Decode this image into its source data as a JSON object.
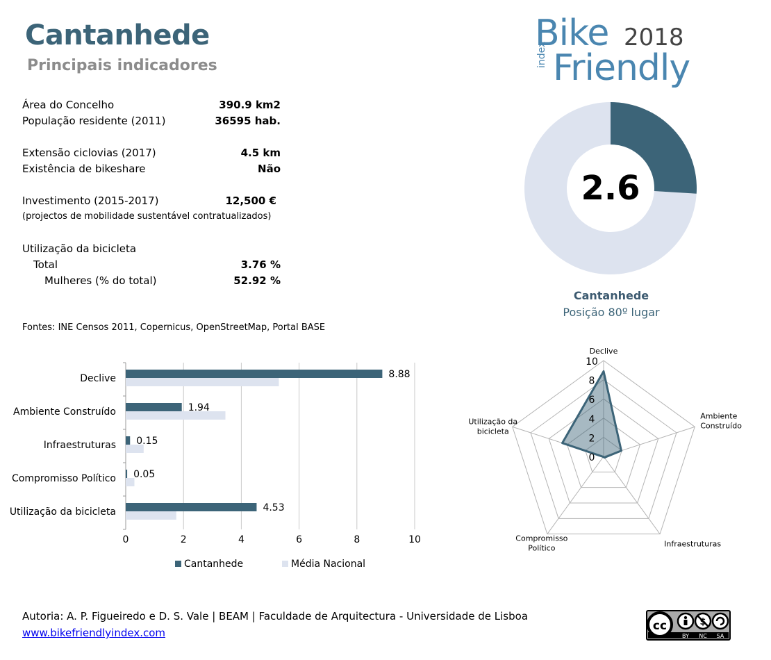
{
  "header": {
    "title": "Cantanhede",
    "subtitle": "Principais indicadores"
  },
  "logo": {
    "word1": "Bike",
    "year": "2018",
    "word2": "Friendly",
    "index": "index"
  },
  "indicators": [
    {
      "label": "Área do Concelho",
      "value": "390.9 km2"
    },
    {
      "label": "População residente (2011)",
      "value": "36595 hab."
    },
    {
      "label": "Extensão ciclovias (2017)",
      "value": "4.5 km"
    },
    {
      "label": "Existência de bikeshare",
      "value": "Não"
    },
    {
      "label": "Investimento (2015-2017)",
      "value": "12,500 €"
    },
    {
      "label": "Utilização da bicicleta",
      "value": ""
    },
    {
      "label": "Total",
      "value": "3.76 %"
    },
    {
      "label": "Mulheres (% do total)",
      "value": "52.92 %"
    }
  ],
  "investment_note": "(projectos de mobilidade sustentável contratualizados)",
  "sources": "Fontes: INE Censos 2011, Copernicus, OpenStreetMap,  Portal BASE",
  "donut": {
    "score": "2.6",
    "score_value": 2.6,
    "max": 10,
    "name": "Cantanhede",
    "position": "Posição 80º lugar",
    "colors": {
      "fill": "#3c6478",
      "rest": "#dde3ef"
    }
  },
  "footer": {
    "authors": "Autoria: A. P. Figueiredo e D. S. Vale | BEAM | Faculdade de Arquitectura - Universidade de Lisboa",
    "link": "www.bikefriendlyindex.com"
  },
  "cc_badge": {
    "cc": "cc",
    "by": "BY",
    "nc": "NC",
    "sa": "SA"
  },
  "chart_data": [
    {
      "type": "bar",
      "orientation": "horizontal",
      "categories": [
        "Declive",
        "Ambiente Construído",
        "Infraestruturas",
        "Compromisso Político",
        "Utilização da bicicleta"
      ],
      "series": [
        {
          "name": "Cantanhede",
          "values": [
            8.88,
            1.94,
            0.15,
            0.05,
            4.53
          ],
          "color": "#3c6478"
        },
        {
          "name": "Média Nacional",
          "values": [
            5.3,
            3.45,
            0.62,
            0.3,
            1.75
          ],
          "color": "#dde3ef"
        }
      ],
      "data_labels": [
        "8.88",
        "1.94",
        "0.15",
        "0.05",
        "4.53"
      ],
      "xlim": [
        0,
        10
      ],
      "xticks": [
        "0",
        "2",
        "4",
        "6",
        "8",
        "10"
      ],
      "grid": true,
      "legend": "bottom"
    },
    {
      "type": "radar",
      "axes": [
        "Declive",
        "Ambiente Construído",
        "Infraestruturas",
        "Compromisso Político",
        "Utilização da bicicleta"
      ],
      "axis_labels": [
        [
          "Declive"
        ],
        [
          "Ambiente",
          "Construído"
        ],
        [
          "Infraestruturas"
        ],
        [
          "Compromisso",
          "Político"
        ],
        [
          "Utilização da",
          "bicicleta"
        ]
      ],
      "series": [
        {
          "values": [
            8.88,
            1.94,
            0.15,
            0.05,
            4.53
          ],
          "color": "#3c6478"
        }
      ],
      "rlim": [
        0,
        10
      ],
      "rticks": [
        "0",
        "2",
        "4",
        "6",
        "8",
        "10"
      ],
      "grid": true
    }
  ]
}
